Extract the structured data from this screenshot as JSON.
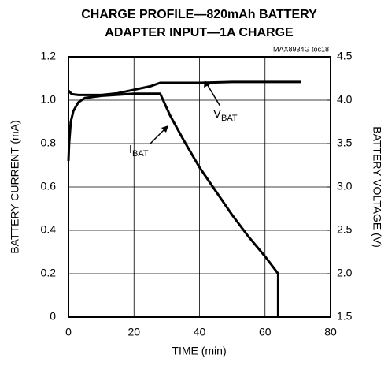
{
  "chart_data": {
    "type": "line",
    "title": [
      "CHARGE PROFILE—820mAh BATTERY",
      "ADAPTER INPUT—1A CHARGE"
    ],
    "annotation": "MAX8934G toc18",
    "xlabel": "TIME (min)",
    "ylabel": "BATTERY CURRENT (mA)",
    "y2label": "BATTERY VOLTAGE (V)",
    "xlim": [
      0,
      80
    ],
    "xticks": [
      0,
      20,
      40,
      60,
      80
    ],
    "ylim": [
      0,
      1.2
    ],
    "yticks": [
      0,
      0.2,
      0.4,
      0.6,
      0.8,
      {
        "value": 1,
        "label": "1.0"
      },
      1.2
    ],
    "y2lim": [
      1.5,
      4.5
    ],
    "y2ticks": [
      1.5,
      {
        "value": 2,
        "label": "2.0"
      },
      2.5,
      {
        "value": 3,
        "label": "3.0"
      },
      3.5,
      {
        "value": 4,
        "label": "4.0"
      },
      4.5
    ],
    "grid": true,
    "series": [
      {
        "label": "I",
        "label_sub": "BAT",
        "color": "#000000",
        "x": [
          0,
          0.2,
          0.7,
          1.5,
          3,
          5,
          10,
          20,
          28,
          31,
          35,
          40,
          45,
          50,
          55,
          60,
          64,
          64
        ],
        "values": [
          0.72,
          0.8,
          0.9,
          0.95,
          0.99,
          1.01,
          1.02,
          1.03,
          1.03,
          0.93,
          0.82,
          0.69,
          0.58,
          0.47,
          0.37,
          0.28,
          0.2,
          0
        ]
      },
      {
        "label": "V",
        "label_sub": "BAT",
        "color": "#000000",
        "axis": "y2",
        "x": [
          0,
          1,
          3,
          10,
          15,
          20,
          25,
          28,
          40,
          50,
          60,
          71
        ],
        "values": [
          4.11,
          4.07,
          4.06,
          4.06,
          4.08,
          4.12,
          4.16,
          4.2,
          4.2,
          4.21,
          4.21,
          4.21
        ]
      }
    ]
  }
}
